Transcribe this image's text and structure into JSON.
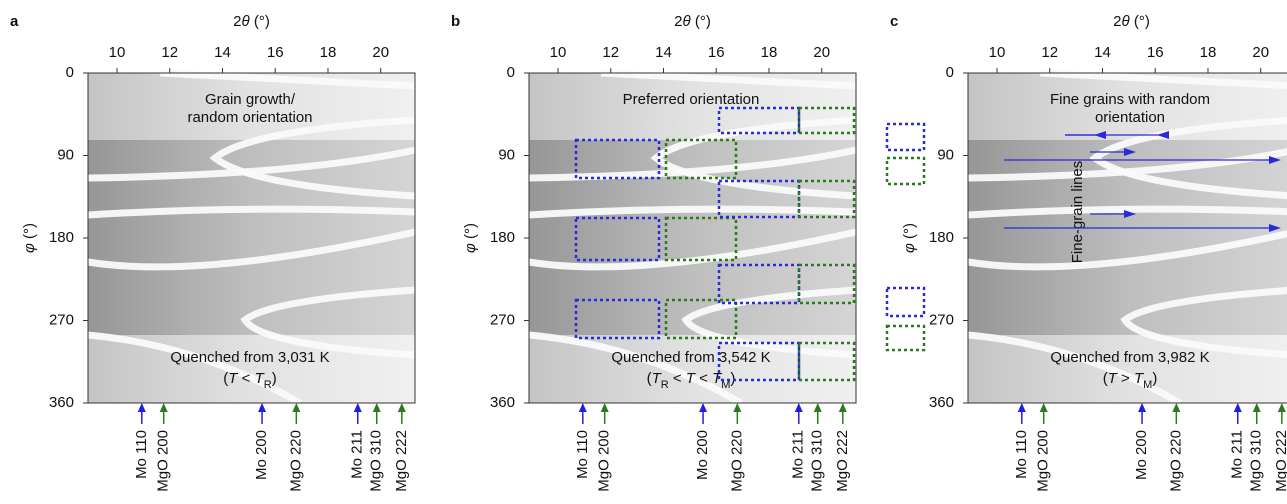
{
  "chart_data": [
    {
      "type": "image",
      "panel": "a",
      "x_label": [
        {
          "text": "2",
          "style": "normal"
        },
        {
          "text": "θ",
          "style": "italic"
        },
        {
          "text": " (°)",
          "style": "normal"
        }
      ],
      "y_label": [
        {
          "text": "φ",
          "style": "italic"
        },
        {
          "text": " (°)",
          "style": "normal"
        }
      ],
      "xlim": [
        8.9,
        21.3
      ],
      "xticks": [
        10,
        12,
        14,
        16,
        18,
        20
      ],
      "ylim": [
        0,
        360
      ],
      "yticks": [
        0,
        90,
        180,
        270,
        360
      ],
      "annotation_top": [
        "Grain growth/",
        "random orientation"
      ],
      "annotation_bottom": "Quenched from 3,031 K",
      "condition": [
        {
          "text": "(",
          "style": "normal"
        },
        {
          "text": "T",
          "style": "italic"
        },
        {
          "text": " < ",
          "style": "normal"
        },
        {
          "text": "T",
          "style": "italic"
        },
        {
          "text": "R",
          "style": "sub"
        },
        {
          "text": ")",
          "style": "normal"
        }
      ],
      "peaks": [
        {
          "label": "Mo 110",
          "x": 10.94,
          "color": "#1f1fe0"
        },
        {
          "label": "MgO 200",
          "x": 11.77,
          "color": "#2a7a1e"
        },
        {
          "label": "Mo 200",
          "x": 15.5,
          "color": "#1f1fe0"
        },
        {
          "label": "MgO 220",
          "x": 16.8,
          "color": "#2a7a1e"
        },
        {
          "label": "Mo 211",
          "x": 19.13,
          "color": "#1f1fe0"
        },
        {
          "label": "MgO 310",
          "x": 19.85,
          "color": "#2a7a1e"
        },
        {
          "label": "MgO 222",
          "x": 20.8,
          "color": "#2a7a1e"
        }
      ]
    },
    {
      "type": "image",
      "panel": "b",
      "x_label": [
        {
          "text": "2",
          "style": "normal"
        },
        {
          "text": "θ",
          "style": "italic"
        },
        {
          "text": " (°)",
          "style": "normal"
        }
      ],
      "y_label": [
        {
          "text": "φ",
          "style": "italic"
        },
        {
          "text": " (°)",
          "style": "normal"
        }
      ],
      "xlim": [
        8.9,
        21.3
      ],
      "xticks": [
        10,
        12,
        14,
        16,
        18,
        20
      ],
      "ylim": [
        0,
        360
      ],
      "yticks": [
        0,
        90,
        180,
        270,
        360
      ],
      "annotation_top": [
        "Preferred orientation"
      ],
      "annotation_bottom": "Quenched from 3,542 K",
      "condition": [
        {
          "text": "(",
          "style": "normal"
        },
        {
          "text": "T",
          "style": "italic"
        },
        {
          "text": "R",
          "style": "sub"
        },
        {
          "text": " < ",
          "style": "normal"
        },
        {
          "text": "T",
          "style": "italic"
        },
        {
          "text": " < ",
          "style": "normal"
        },
        {
          "text": "T",
          "style": "italic"
        },
        {
          "text": "M",
          "style": "sub"
        },
        {
          "text": ")",
          "style": "normal"
        }
      ],
      "peaks": [
        {
          "label": "Mo 110",
          "x": 10.94,
          "color": "#1f1fe0"
        },
        {
          "label": "MgO 200",
          "x": 11.77,
          "color": "#2a7a1e"
        },
        {
          "label": "Mo 200",
          "x": 15.5,
          "color": "#1f1fe0"
        },
        {
          "label": "MgO 220",
          "x": 16.8,
          "color": "#2a7a1e"
        },
        {
          "label": "Mo 211",
          "x": 19.13,
          "color": "#1f1fe0"
        },
        {
          "label": "MgO 310",
          "x": 19.85,
          "color": "#2a7a1e"
        },
        {
          "label": "MgO 222",
          "x": 20.8,
          "color": "#2a7a1e"
        }
      ]
    },
    {
      "type": "image",
      "panel": "c",
      "x_label": [
        {
          "text": "2",
          "style": "normal"
        },
        {
          "text": "θ",
          "style": "italic"
        },
        {
          "text": " (°)",
          "style": "normal"
        }
      ],
      "y_label": [
        {
          "text": "φ",
          "style": "italic"
        },
        {
          "text": " (°)",
          "style": "normal"
        }
      ],
      "xlim": [
        8.9,
        21.3
      ],
      "xticks": [
        10,
        12,
        14,
        16,
        18,
        20
      ],
      "ylim": [
        0,
        360
      ],
      "yticks": [
        0,
        90,
        180,
        270,
        360
      ],
      "annotation_top": [
        "Fine grains with random",
        "orientation"
      ],
      "annotation_bottom": "Quenched from 3,982 K",
      "condition": [
        {
          "text": "(",
          "style": "normal"
        },
        {
          "text": "T",
          "style": "italic"
        },
        {
          "text": " > ",
          "style": "normal"
        },
        {
          "text": "T",
          "style": "italic"
        },
        {
          "text": "M",
          "style": "sub"
        },
        {
          "text": ")",
          "style": "normal"
        }
      ],
      "side_label": "Fine-grain lines",
      "peaks": [
        {
          "label": "Mo 110",
          "x": 10.94,
          "color": "#1f1fe0"
        },
        {
          "label": "MgO 200",
          "x": 11.77,
          "color": "#2a7a1e"
        },
        {
          "label": "Mo 200",
          "x": 15.5,
          "color": "#1f1fe0"
        },
        {
          "label": "MgO 220",
          "x": 16.8,
          "color": "#2a7a1e"
        },
        {
          "label": "Mo 211",
          "x": 19.13,
          "color": "#1f1fe0"
        },
        {
          "label": "MgO 310",
          "x": 19.85,
          "color": "#2a7a1e"
        },
        {
          "label": "MgO 222",
          "x": 20.8,
          "color": "#2a7a1e"
        }
      ]
    }
  ]
}
